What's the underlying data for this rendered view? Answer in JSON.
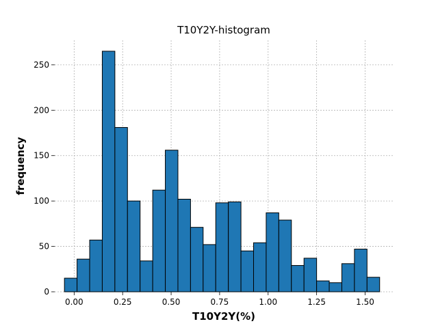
{
  "chart_data": {
    "type": "bar",
    "title": "T10Y2Y-histogram",
    "xlabel": "T10Y2Y(%)",
    "ylabel": "frequency",
    "bar_color": "#1f77b4",
    "edge_color": "#000000",
    "grid": true,
    "xlim": [
      -0.1,
      1.65
    ],
    "ylim": [
      0,
      277
    ],
    "xticks": [
      0.0,
      0.25,
      0.5,
      0.75,
      1.0,
      1.25,
      1.5
    ],
    "xtick_labels": [
      "0.00",
      "0.25",
      "0.50",
      "0.75",
      "1.00",
      "1.25",
      "1.50"
    ],
    "yticks": [
      0,
      50,
      100,
      150,
      200,
      250
    ],
    "ytick_labels": [
      "0",
      "50",
      "100",
      "150",
      "200",
      "250"
    ],
    "bin_edges": [
      -0.05,
      0.015,
      0.08,
      0.145,
      0.21,
      0.275,
      0.34,
      0.405,
      0.47,
      0.535,
      0.6,
      0.665,
      0.73,
      0.795,
      0.86,
      0.925,
      0.99,
      1.055,
      1.12,
      1.185,
      1.25,
      1.315,
      1.38,
      1.445,
      1.51,
      1.575
    ],
    "values": [
      15,
      36,
      57,
      265,
      181,
      100,
      34,
      112,
      156,
      102,
      71,
      52,
      98,
      99,
      45,
      54,
      87,
      79,
      29,
      37,
      12,
      10,
      31,
      47,
      16
    ]
  }
}
